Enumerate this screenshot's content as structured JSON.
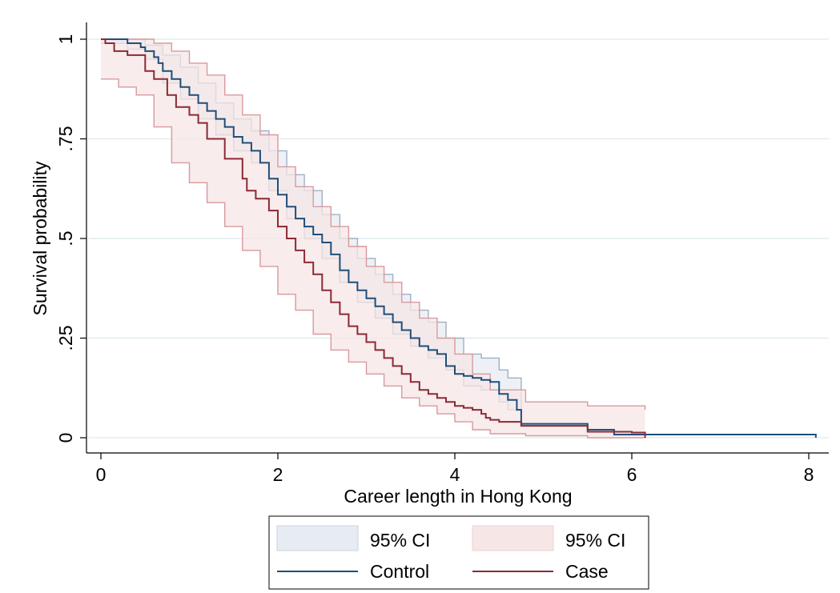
{
  "chart_data": {
    "type": "line",
    "subtype": "kaplan-meier step",
    "title": "",
    "xlabel": "Career length in Hong Kong",
    "ylabel": "Survival probability",
    "xlim": [
      0,
      8.15
    ],
    "ylim": [
      0,
      1
    ],
    "xticks": [
      0,
      2,
      4,
      6,
      8
    ],
    "xtick_labels": [
      "0",
      "2",
      "4",
      "6",
      "8"
    ],
    "yticks": [
      0,
      0.25,
      0.5,
      0.75,
      1
    ],
    "ytick_labels": [
      "0",
      ".25",
      ".5",
      ".75",
      "1"
    ],
    "grid": "horizontal",
    "legend_placement": "bottom",
    "legend": [
      {
        "label": "95% CI",
        "kind": "band",
        "group": "control"
      },
      {
        "label": "95% CI",
        "kind": "band",
        "group": "case"
      },
      {
        "label": "Control",
        "kind": "line",
        "group": "control"
      },
      {
        "label": "Case",
        "kind": "line",
        "group": "case"
      }
    ],
    "colors": {
      "control_line": "#1f4e79",
      "control_band_fill": "#e7ecf2",
      "control_band_edge": "#9fb0c4",
      "case_line": "#8b2a35",
      "case_band_fill": "#f6e6e6",
      "case_band_edge": "#d89a9e",
      "grid": "#dde9ec"
    },
    "series": [
      {
        "name": "Control",
        "x": [
          0,
          0.3,
          0.45,
          0.5,
          0.6,
          0.65,
          0.7,
          0.8,
          0.9,
          1.0,
          1.1,
          1.2,
          1.3,
          1.4,
          1.5,
          1.6,
          1.7,
          1.8,
          1.9,
          2.0,
          2.1,
          2.2,
          2.3,
          2.4,
          2.5,
          2.6,
          2.7,
          2.8,
          2.9,
          3.0,
          3.1,
          3.2,
          3.3,
          3.4,
          3.5,
          3.6,
          3.7,
          3.8,
          3.9,
          4.0,
          4.1,
          4.2,
          4.3,
          4.4,
          4.5,
          4.6,
          4.7,
          4.75,
          5.5,
          5.8,
          8.05,
          8.08
        ],
        "y": [
          1.0,
          0.99,
          0.98,
          0.97,
          0.955,
          0.94,
          0.92,
          0.9,
          0.88,
          0.86,
          0.84,
          0.82,
          0.8,
          0.78,
          0.755,
          0.74,
          0.72,
          0.69,
          0.65,
          0.61,
          0.58,
          0.55,
          0.53,
          0.51,
          0.49,
          0.46,
          0.42,
          0.39,
          0.37,
          0.35,
          0.33,
          0.31,
          0.29,
          0.27,
          0.25,
          0.23,
          0.22,
          0.21,
          0.18,
          0.16,
          0.155,
          0.15,
          0.145,
          0.14,
          0.11,
          0.095,
          0.07,
          0.035,
          0.02,
          0.008,
          0.008,
          0.0
        ]
      },
      {
        "name": "Case",
        "x": [
          0,
          0.05,
          0.15,
          0.3,
          0.5,
          0.6,
          0.75,
          0.85,
          1.0,
          1.1,
          1.2,
          1.4,
          1.6,
          1.65,
          1.75,
          1.9,
          2.0,
          2.1,
          2.2,
          2.3,
          2.4,
          2.5,
          2.6,
          2.7,
          2.8,
          2.9,
          3.0,
          3.1,
          3.2,
          3.3,
          3.4,
          3.5,
          3.6,
          3.7,
          3.8,
          3.9,
          4.0,
          4.1,
          4.2,
          4.3,
          4.35,
          4.4,
          4.5,
          4.75,
          5.5,
          6.0,
          6.15
        ],
        "y": [
          1.0,
          0.99,
          0.97,
          0.96,
          0.92,
          0.9,
          0.86,
          0.83,
          0.81,
          0.79,
          0.75,
          0.7,
          0.65,
          0.62,
          0.6,
          0.57,
          0.53,
          0.5,
          0.47,
          0.44,
          0.41,
          0.37,
          0.34,
          0.31,
          0.28,
          0.26,
          0.24,
          0.22,
          0.2,
          0.18,
          0.16,
          0.14,
          0.12,
          0.11,
          0.1,
          0.09,
          0.08,
          0.075,
          0.07,
          0.06,
          0.05,
          0.045,
          0.04,
          0.03,
          0.015,
          0.013,
          0.0
        ]
      }
    ],
    "ci_bands": [
      {
        "group": "Control",
        "x": [
          0,
          0.3,
          0.5,
          0.7,
          0.9,
          1.1,
          1.3,
          1.5,
          1.7,
          1.9,
          2.1,
          2.3,
          2.5,
          2.7,
          2.9,
          3.1,
          3.3,
          3.5,
          3.7,
          3.9,
          4.1,
          4.3,
          4.5,
          4.6,
          4.75
        ],
        "lower": [
          0.99,
          0.975,
          0.95,
          0.89,
          0.85,
          0.8,
          0.76,
          0.72,
          0.69,
          0.62,
          0.55,
          0.5,
          0.45,
          0.39,
          0.34,
          0.3,
          0.26,
          0.23,
          0.2,
          0.17,
          0.13,
          0.12,
          0.09,
          0.07,
          0.03
        ],
        "upper": [
          1.0,
          1.0,
          0.985,
          0.96,
          0.93,
          0.89,
          0.84,
          0.8,
          0.77,
          0.72,
          0.66,
          0.62,
          0.56,
          0.5,
          0.45,
          0.41,
          0.36,
          0.32,
          0.29,
          0.25,
          0.21,
          0.2,
          0.17,
          0.15,
          0.04
        ]
      },
      {
        "group": "Case",
        "x": [
          0,
          0.2,
          0.4,
          0.6,
          0.8,
          1.0,
          1.2,
          1.4,
          1.6,
          1.8,
          2.0,
          2.2,
          2.4,
          2.6,
          2.8,
          3.0,
          3.2,
          3.4,
          3.6,
          3.8,
          4.0,
          4.2,
          4.4,
          4.8,
          5.5,
          6.15
        ],
        "lower": [
          0.9,
          0.88,
          0.86,
          0.78,
          0.69,
          0.64,
          0.59,
          0.53,
          0.47,
          0.43,
          0.36,
          0.32,
          0.26,
          0.22,
          0.19,
          0.16,
          0.13,
          0.1,
          0.08,
          0.06,
          0.04,
          0.02,
          0.01,
          0.005,
          0.0,
          0.0
        ],
        "upper": [
          1.0,
          1.0,
          1.0,
          0.99,
          0.97,
          0.94,
          0.91,
          0.86,
          0.81,
          0.76,
          0.68,
          0.63,
          0.58,
          0.53,
          0.48,
          0.43,
          0.39,
          0.34,
          0.3,
          0.25,
          0.21,
          0.16,
          0.12,
          0.09,
          0.08,
          0.07
        ]
      }
    ]
  }
}
